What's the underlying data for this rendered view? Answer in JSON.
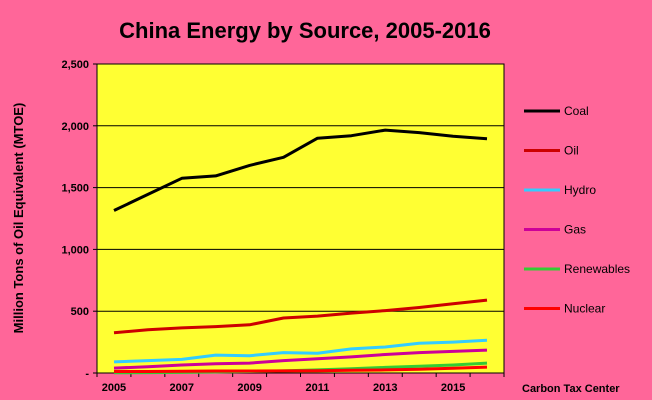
{
  "chart_data": {
    "type": "line",
    "title": "China Energy by Source, 2005-2016",
    "xlabel": "",
    "ylabel": "Million Tons of Oil Equivalent (MTOE)",
    "source": "Carbon Tax Center",
    "x": [
      2005,
      2006,
      2007,
      2008,
      2009,
      2010,
      2011,
      2012,
      2013,
      2014,
      2015,
      2016
    ],
    "x_tick_labels": [
      "2005",
      "2007",
      "2009",
      "2011",
      "2013",
      "2015"
    ],
    "y_tick_labels": [
      "-",
      "500",
      "1,000",
      "1,500",
      "2,000",
      "2,500"
    ],
    "ylim": [
      0,
      2500
    ],
    "grid": "horizontal",
    "legend_position": "right",
    "plot_background": "#ffff33",
    "series": [
      {
        "name": "Coal",
        "color": "#000000",
        "values": [
          1315,
          1445,
          1575,
          1595,
          1680,
          1745,
          1900,
          1920,
          1965,
          1945,
          1915,
          1895
        ]
      },
      {
        "name": "Oil",
        "color": "#cc0000",
        "values": [
          325,
          350,
          365,
          375,
          390,
          445,
          460,
          485,
          505,
          530,
          560,
          590
        ]
      },
      {
        "name": "Hydro",
        "color": "#33ccff",
        "values": [
          90,
          100,
          110,
          145,
          140,
          165,
          160,
          195,
          210,
          240,
          250,
          265
        ]
      },
      {
        "name": "Gas",
        "color": "#cc0099",
        "values": [
          40,
          50,
          65,
          75,
          80,
          100,
          115,
          130,
          150,
          165,
          175,
          185
        ]
      },
      {
        "name": "Renewables",
        "color": "#33cc33",
        "values": [
          2,
          3,
          5,
          8,
          12,
          17,
          25,
          35,
          45,
          55,
          65,
          80
        ]
      },
      {
        "name": "Nuclear",
        "color": "#ff0000",
        "values": [
          12,
          12,
          14,
          16,
          16,
          17,
          19,
          22,
          25,
          30,
          38,
          48
        ]
      }
    ]
  }
}
